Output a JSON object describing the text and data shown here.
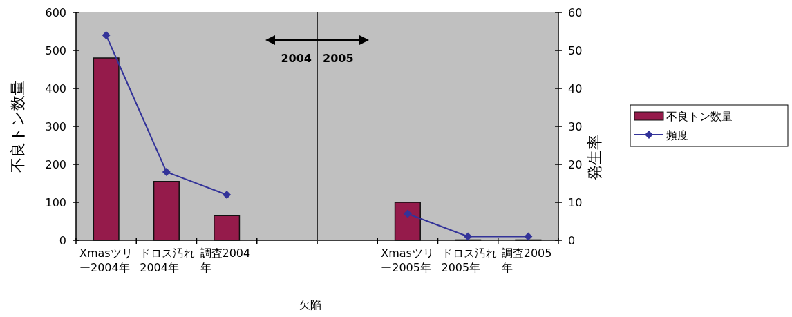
{
  "chart_data": {
    "type": "bar",
    "xlabel": "欠陥",
    "ylabel": "不良トン数量",
    "y2label": "発生率",
    "categories": [
      "Xmasツリー2004年",
      "ドロス汚れ2004年",
      "調査2004年",
      null,
      null,
      "Xmasツリー2005年",
      "ドロス汚れ2005年",
      "調査2005年"
    ],
    "series": [
      {
        "name": "不良トン数量",
        "color": "#951b4b",
        "values": [
          480,
          155,
          65,
          null,
          null,
          100,
          1,
          1
        ]
      },
      {
        "name": "頻度",
        "type": "line",
        "axis": "y2",
        "color": "#333399",
        "marker": "diamond",
        "values": [
          54,
          18,
          12,
          null,
          null,
          7,
          1,
          1
        ]
      }
    ],
    "ylim": [
      0,
      600
    ],
    "yticks": [
      0,
      100,
      200,
      300,
      400,
      500,
      600
    ],
    "y2lim": [
      0,
      60
    ],
    "y2ticks": [
      0,
      10,
      20,
      30,
      40,
      50,
      60
    ],
    "annotations": [
      "2004",
      "2005"
    ],
    "legend": "right",
    "grid": false
  }
}
